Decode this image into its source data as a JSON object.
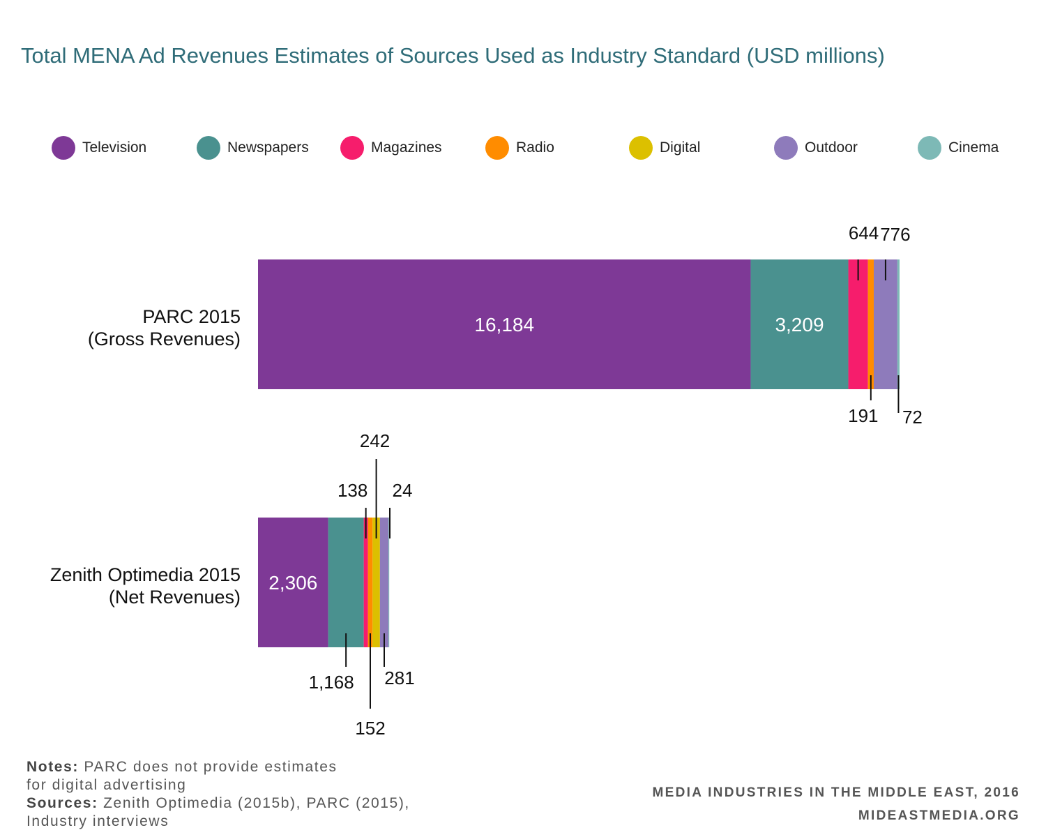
{
  "title": "Total MENA Ad Revenues Estimates of Sources Used as Industry Standard (USD millions)",
  "legend": [
    {
      "label": "Television",
      "color": "#7e3996"
    },
    {
      "label": "Newspapers",
      "color": "#4a918f"
    },
    {
      "label": "Magazines",
      "color": "#f61d6c"
    },
    {
      "label": "Radio",
      "color": "#ff8c00"
    },
    {
      "label": "Digital",
      "color": "#dcc000"
    },
    {
      "label": "Outdoor",
      "color": "#8e7bbb"
    },
    {
      "label": "Cinema",
      "color": "#7db9b6"
    }
  ],
  "rows": [
    {
      "label_line1": "PARC 2015",
      "label_line2": "(Gross Revenues)"
    },
    {
      "label_line1": "Zenith Optimedia 2015",
      "label_line2": "(Net Revenues)"
    }
  ],
  "chart_data": {
    "type": "bar",
    "orientation": "horizontal",
    "stacked": true,
    "title": "Total MENA Ad Revenues Estimates of Sources Used as Industry Standard (USD millions)",
    "categories": [
      "PARC 2015 (Gross Revenues)",
      "Zenith Optimedia 2015 (Net Revenues)"
    ],
    "series": [
      {
        "name": "Television",
        "color": "#7e3996",
        "values": [
          16184,
          2306
        ],
        "labels": [
          "16,184",
          "2,306"
        ]
      },
      {
        "name": "Newspapers",
        "color": "#4a918f",
        "values": [
          3209,
          1168
        ],
        "labels": [
          "3,209",
          "1,168"
        ]
      },
      {
        "name": "Magazines",
        "color": "#f61d6c",
        "values": [
          644,
          138
        ],
        "labels": [
          "644",
          "138"
        ]
      },
      {
        "name": "Radio",
        "color": "#ff8c00",
        "values": [
          191,
          152
        ],
        "labels": [
          "191",
          "152"
        ]
      },
      {
        "name": "Digital",
        "color": "#dcc000",
        "values": [
          0,
          242
        ],
        "labels": [
          "",
          "242"
        ]
      },
      {
        "name": "Outdoor",
        "color": "#8e7bbb",
        "values": [
          776,
          281
        ],
        "labels": [
          "776",
          "281"
        ]
      },
      {
        "name": "Cinema",
        "color": "#7db9b6",
        "values": [
          72,
          24
        ],
        "labels": [
          "72",
          "24"
        ]
      }
    ],
    "grid": false,
    "legend_position": "top"
  },
  "footer": {
    "notes_label": "Notes:",
    "notes_text": "PARC does not provide estimates",
    "notes_text2": "for digital advertising",
    "sources_label": "Sources:",
    "sources_text": "Zenith Optimedia (2015b), PARC (2015),",
    "sources_text2": "Industry interviews",
    "publication": "MEDIA INDUSTRIES IN THE MIDDLE EAST, 2016",
    "website": "MIDEASTMEDIA.ORG"
  }
}
